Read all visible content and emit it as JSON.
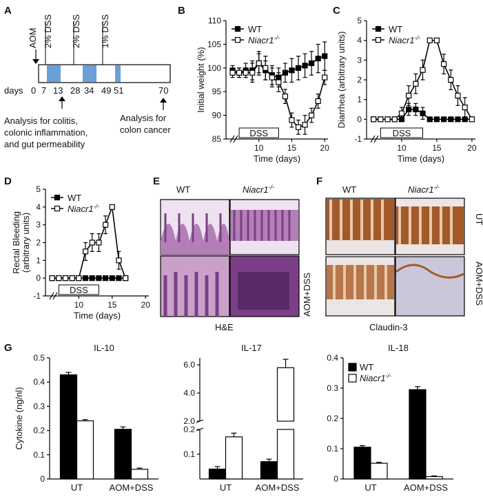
{
  "figure": {
    "panel_labels": [
      "A",
      "B",
      "C",
      "D",
      "E",
      "F",
      "G"
    ],
    "panelA": {
      "aom_label": "AOM",
      "dss_labels": [
        "2% DSS",
        "2% DSS",
        "1% DSS"
      ],
      "days_label": "days",
      "day_ticks": [
        "0",
        "7",
        "13",
        "28",
        "34",
        "49",
        "51",
        "70"
      ],
      "note_left": [
        "Analysis for colitis,",
        "colonic inflammation,",
        "and gut permeability"
      ],
      "note_right": [
        "Analysis for",
        "colon cancer"
      ]
    },
    "panelE": {
      "col_wt": "WT",
      "col_ko": "Niacr1",
      "ko_sup": "-/-",
      "row_ut": "",
      "row_aom": "AOM+DSS",
      "stain": "H&E"
    },
    "panelF": {
      "col_wt": "WT",
      "col_ko": "Niacr1",
      "ko_sup": "-/-",
      "row_ut": "UT",
      "row_aom": "AOM+DSS",
      "stain": "Claudin-3"
    },
    "colors": {
      "he_pink": "#c9a1c8",
      "he_purple": "#7a3f86",
      "he_bg": "#efe1ef",
      "ihc_brown": "#a35a2a",
      "ihc_bg": "#ece5e6",
      "ihc_blue": "#c9c7d9",
      "dss_fill": "#6aa0d8"
    }
  },
  "chart_data": [
    {
      "id": "B",
      "type": "line",
      "ylabel": "Initial weight (%)",
      "xlabel": "Time (days)",
      "ylim": [
        85,
        110
      ],
      "yticks": [
        85,
        90,
        95,
        100,
        105,
        110
      ],
      "xlim": [
        5,
        20.5
      ],
      "xticks": [
        10,
        15,
        20
      ],
      "bar_label": "DSS",
      "bar_range": [
        7,
        13
      ],
      "legend": [
        "WT",
        "Niacr1"
      ],
      "legend_sup": "-/-",
      "series": [
        {
          "name": "WT",
          "marker": "filled",
          "x": [
            6,
            7,
            8,
            9,
            10,
            11,
            12,
            13,
            14,
            15,
            16,
            17,
            18,
            19,
            20
          ],
          "y": [
            99.5,
            99,
            99.5,
            99.5,
            101,
            99.5,
            98.5,
            98,
            99,
            99.5,
            100,
            100.5,
            101,
            102,
            102.5
          ],
          "err": [
            1,
            1,
            1.5,
            2,
            2,
            2,
            2,
            2,
            2,
            2.5,
            2.5,
            2.5,
            2.5,
            3,
            3
          ]
        },
        {
          "name": "Niacr1-/-",
          "marker": "open",
          "x": [
            6,
            7,
            8,
            9,
            10,
            11,
            12,
            13,
            14,
            15,
            16,
            17,
            18,
            19,
            20
          ],
          "y": [
            99,
            99,
            99,
            99,
            101,
            100,
            98,
            97,
            94,
            89,
            87.5,
            88,
            90,
            93,
            98
          ],
          "err": [
            1,
            1,
            1,
            2,
            2.5,
            2.5,
            2,
            2,
            1.5,
            1.5,
            1.5,
            2,
            1.5,
            1.5,
            1.5
          ]
        }
      ]
    },
    {
      "id": "C",
      "type": "line",
      "ylabel": "Diarrhea (arbitrary units)",
      "xlabel": "Time (days)",
      "ylim": [
        -1,
        5
      ],
      "yticks": [
        -1,
        0,
        1,
        2,
        3,
        4,
        5
      ],
      "xlim": [
        5,
        20.5
      ],
      "xticks": [
        10,
        15,
        20
      ],
      "bar_label": "DSS",
      "bar_range": [
        7,
        13
      ],
      "legend": [
        "WT",
        "Niacr1"
      ],
      "legend_sup": "-/-",
      "series": [
        {
          "name": "WT",
          "marker": "filled",
          "x": [
            6,
            7,
            8,
            9,
            10,
            11,
            12,
            13,
            14,
            15,
            16,
            17,
            18,
            19,
            20
          ],
          "y": [
            0,
            0,
            0,
            0,
            0,
            0.5,
            0.5,
            0.3,
            0,
            0,
            0,
            0,
            0,
            0,
            0
          ],
          "err": [
            0,
            0,
            0,
            0,
            0,
            0.3,
            0.3,
            0.3,
            0,
            0,
            0,
            0,
            0,
            0,
            0
          ]
        },
        {
          "name": "Niacr1-/-",
          "marker": "open",
          "x": [
            6,
            7,
            8,
            9,
            10,
            11,
            12,
            13,
            14,
            15,
            16,
            17,
            18,
            19,
            20
          ],
          "y": [
            0,
            0,
            0,
            0,
            0.3,
            1.2,
            1.8,
            2.5,
            4,
            4,
            2.8,
            2,
            1.2,
            0.6,
            0
          ],
          "err": [
            0,
            0,
            0,
            0,
            0.3,
            0.5,
            0.5,
            0.5,
            0,
            0,
            0.5,
            0.5,
            0.5,
            0.5,
            0
          ]
        }
      ]
    },
    {
      "id": "D",
      "type": "line",
      "ylabel": "Rectal Bleeding (arbitrary units)",
      "ylabel_lines": [
        "Rectal Bleeding",
        "(arbitrary units)"
      ],
      "xlabel": "Time (days)",
      "ylim": [
        -1,
        5
      ],
      "yticks": [
        -1,
        0,
        1,
        2,
        3,
        4,
        5
      ],
      "xlim": [
        5,
        20.5
      ],
      "xticks": [
        10,
        15,
        20
      ],
      "bar_label": "DSS",
      "bar_range": [
        7,
        13
      ],
      "legend": [
        "WT",
        "Niacr1"
      ],
      "legend_sup": "-/-",
      "series": [
        {
          "name": "WT",
          "marker": "filled",
          "x": [
            6,
            7,
            8,
            9,
            10,
            11,
            12,
            13,
            14,
            15,
            16,
            17
          ],
          "y": [
            0,
            0,
            0,
            0,
            0,
            0,
            0,
            0,
            0,
            0,
            0,
            0
          ],
          "err": [
            0,
            0,
            0,
            0,
            0,
            0,
            0,
            0,
            0,
            0,
            0,
            0
          ]
        },
        {
          "name": "Niacr1-/-",
          "marker": "open",
          "x": [
            6,
            7,
            8,
            9,
            10,
            11,
            12,
            13,
            14,
            15,
            16,
            17
          ],
          "y": [
            0,
            0,
            0,
            0,
            0,
            1.5,
            2,
            2,
            3,
            4,
            1,
            0
          ],
          "err": [
            0,
            0,
            0,
            0,
            0,
            0.5,
            0.5,
            0.5,
            0.5,
            0,
            0.5,
            0
          ]
        }
      ]
    },
    {
      "id": "G1",
      "type": "bar",
      "title": "IL-10",
      "ylabel": "Cytokine (ng/nl)",
      "categories": [
        "UT",
        "AOM+DSS"
      ],
      "ylim": [
        0,
        0.5
      ],
      "yticks": [
        0,
        0.1,
        0.2,
        0.3,
        0.4,
        0.5
      ],
      "ytick_labels": [
        "0",
        "0.1",
        "0.2",
        "0.3",
        "0.4",
        "0.5"
      ],
      "series": [
        {
          "name": "WT",
          "fill": "#000000",
          "values": [
            0.43,
            0.205
          ],
          "err": [
            0.01,
            0.01
          ]
        },
        {
          "name": "Niacr1-/-",
          "fill": "#ffffff",
          "values": [
            0.24,
            0.04
          ],
          "err": [
            0.005,
            0.005
          ]
        }
      ]
    },
    {
      "id": "G2",
      "type": "bar",
      "title": "IL-17",
      "categories": [
        "UT",
        "AOM+DSS"
      ],
      "broken_axis": true,
      "ylim_lower": [
        0,
        0.2
      ],
      "ylim_upper": [
        2,
        6.5
      ],
      "yticks_lower": [
        0.1,
        0.2
      ],
      "yticks_upper": [
        2.0,
        4.0,
        6.0
      ],
      "ytick_labels_lower": [
        "0.1",
        "0.2"
      ],
      "ytick_labels_upper": [
        "2.0",
        "4.0",
        "6.0"
      ],
      "series": [
        {
          "name": "WT",
          "fill": "#000000",
          "values": [
            0.04,
            0.07
          ],
          "err": [
            0.01,
            0.01
          ]
        },
        {
          "name": "Niacr1-/-",
          "fill": "#ffffff",
          "values": [
            0.17,
            5.8
          ],
          "err": [
            0.015,
            0.6
          ]
        }
      ]
    },
    {
      "id": "G3",
      "type": "bar",
      "title": "IL-18",
      "categories": [
        "UT",
        "AOM+DSS"
      ],
      "ylim": [
        0,
        0.4
      ],
      "yticks": [
        0,
        0.1,
        0.2,
        0.3,
        0.4
      ],
      "ytick_labels": [
        "0",
        "0.1",
        "0.2",
        "0.3",
        "0.4"
      ],
      "legend": [
        "WT",
        "Niacr1"
      ],
      "legend_sup": "-/-",
      "series": [
        {
          "name": "WT",
          "fill": "#000000",
          "values": [
            0.105,
            0.295
          ],
          "err": [
            0.005,
            0.01
          ]
        },
        {
          "name": "Niacr1-/-",
          "fill": "#ffffff",
          "values": [
            0.052,
            0.008
          ],
          "err": [
            0.003,
            0.002
          ]
        }
      ]
    }
  ]
}
